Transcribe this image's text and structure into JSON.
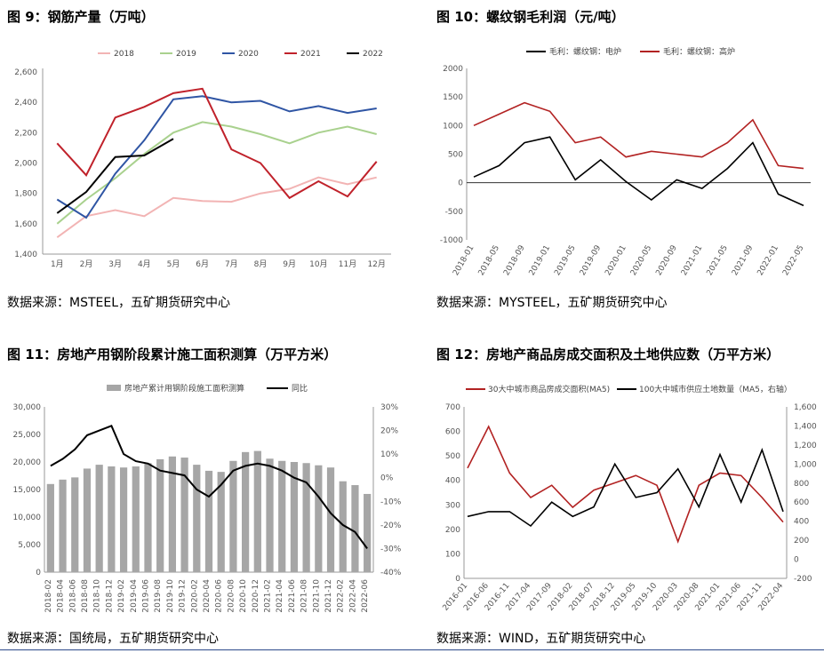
{
  "charts": [
    {
      "figure_title": "图 9：钢筋产量（万吨）",
      "source": "数据来源：MSTEEL，五矿期货研究中心",
      "chart_data": {
        "type": "line",
        "title": "图 9：钢筋产量（万吨）",
        "categories": [
          "1月",
          "2月",
          "3月",
          "4月",
          "5月",
          "6月",
          "7月",
          "8月",
          "9月",
          "10月",
          "11月",
          "12月"
        ],
        "yticks": [
          "1,400",
          "1,600",
          "1,800",
          "2,000",
          "2,200",
          "2,400",
          "2,600"
        ],
        "ylim": [
          1400,
          2600
        ],
        "legend_position": "top",
        "series": [
          {
            "name": "2018",
            "color": "#f2b4b4",
            "values": [
              1510,
              1650,
              1690,
              1650,
              1770,
              1750,
              1745,
              1800,
              1830,
              1905,
              1860,
              1905
            ]
          },
          {
            "name": "2019",
            "color": "#a9d18e",
            "values": [
              1600,
              1760,
              1900,
              2060,
              2200,
              2270,
              2240,
              2190,
              2130,
              2200,
              2240,
              2190
            ]
          },
          {
            "name": "2020",
            "color": "#2f55a4",
            "values": [
              1760,
              1640,
              1930,
              2150,
              2420,
              2440,
              2400,
              2410,
              2340,
              2375,
              2330,
              2360
            ]
          },
          {
            "name": "2021",
            "color": "#c0222b",
            "values": [
              2130,
              1920,
              2300,
              2370,
              2460,
              2490,
              2090,
              2000,
              1770,
              1880,
              1780,
              2010
            ]
          },
          {
            "name": "2022",
            "color": "#000000",
            "values": [
              1670,
              1810,
              2040,
              2050,
              2160,
              null,
              null,
              null,
              null,
              null,
              null,
              null
            ]
          }
        ]
      }
    },
    {
      "figure_title": "图 10：螺纹钢毛利润（元/吨）",
      "source": "数据来源：MYSTEEL，五矿期货研究中心",
      "chart_data": {
        "type": "line",
        "title": "图 10：螺纹钢毛利润（元/吨）",
        "x": [
          "2018-01",
          "2018-05",
          "2018-09",
          "2019-01",
          "2019-05",
          "2019-09",
          "2020-01",
          "2020-05",
          "2020-09",
          "2021-01",
          "2021-05",
          "2021-09",
          "2022-01",
          "2022-05"
        ],
        "yticks": [
          "-1000",
          "-500",
          "0",
          "500",
          "1000",
          "1500",
          "2000"
        ],
        "ylim": [
          -1000,
          2000
        ],
        "legend_position": "top",
        "series": [
          {
            "name": "毛利：螺纹钢：电炉",
            "color": "#000000",
            "values": [
              100,
              300,
              700,
              800,
              50,
              400,
              20,
              -300,
              50,
              -100,
              250,
              700,
              -200,
              -400
            ]
          },
          {
            "name": "毛利：螺纹钢：高炉",
            "color": "#b22222",
            "values": [
              1000,
              1200,
              1400,
              1250,
              700,
              800,
              450,
              550,
              500,
              450,
              700,
              1100,
              300,
              250
            ]
          }
        ]
      }
    },
    {
      "figure_title": "图 11：房地产用钢阶段累计施工面积测算（万平方米）",
      "source": "数据来源：国统局，五矿期货研究中心",
      "chart_data": {
        "type": "bar",
        "title": "图 11：房地产用钢阶段累计施工面积测算（万平方米）",
        "categories": [
          "2018-02",
          "2018-04",
          "2018-06",
          "2018-08",
          "2018-10",
          "2018-12",
          "2019-02",
          "2019-04",
          "2019-06",
          "2019-08",
          "2019-10",
          "2019-12",
          "2020-02",
          "2020-04",
          "2020-06",
          "2020-08",
          "2020-10",
          "2020-12",
          "2021-02",
          "2021-04",
          "2021-06",
          "2021-08",
          "2021-10",
          "2021-12",
          "2022-02",
          "2022-04",
          "2022-06"
        ],
        "yticks_left": [
          "0",
          "5,000",
          "10,000",
          "15,000",
          "20,000",
          "25,000",
          "30,000"
        ],
        "yticks_right": [
          "-40%",
          "-30%",
          "-20%",
          "-10%",
          "0%",
          "10%",
          "20%",
          "30%"
        ],
        "ylim_left": [
          0,
          30000
        ],
        "ylim_right": [
          -40,
          30
        ],
        "legend_position": "top",
        "series": [
          {
            "name": "房地产累计用钢阶段施工面积测算",
            "color": "#a6a6a6",
            "kind": "bar",
            "values": [
              16000,
              16800,
              17200,
              18800,
              19500,
              19200,
              19000,
              19200,
              19800,
              20500,
              21000,
              20800,
              19500,
              18400,
              18200,
              20200,
              21800,
              22000,
              20600,
              20200,
              20000,
              19800,
              19400,
              19000,
              16500,
              15800,
              14200
            ]
          },
          {
            "name": "同比",
            "color": "#000000",
            "kind": "line",
            "axis": "right",
            "values": [
              5,
              8,
              12,
              18,
              20,
              22,
              10,
              7,
              6,
              3,
              2,
              1,
              -5,
              -8,
              -3,
              3,
              5,
              6,
              5,
              3,
              0,
              -2,
              -8,
              -15,
              -20,
              -23,
              -30
            ]
          }
        ]
      }
    },
    {
      "figure_title": "图 12：房地产商品房成交面积及土地供应数（万平方米）",
      "source": "数据来源：WIND，五矿期货研究中心",
      "chart_data": {
        "type": "line",
        "title": "图 12：房地产商品房成交面积及土地供应数（万平方米）",
        "x": [
          "2016-01",
          "2016-06",
          "2016-11",
          "2017-04",
          "2017-09",
          "2018-02",
          "2018-07",
          "2018-12",
          "2019-05",
          "2019-10",
          "2020-03",
          "2020-08",
          "2021-01",
          "2021-06",
          "2021-11",
          "2022-04"
        ],
        "yticks_left": [
          "0",
          "100",
          "200",
          "300",
          "400",
          "500",
          "600",
          "700"
        ],
        "yticks_right": [
          "-200",
          "0",
          "200",
          "400",
          "600",
          "800",
          "1,000",
          "1,200",
          "1,400",
          "1,600"
        ],
        "ylim_left": [
          0,
          700
        ],
        "ylim_right": [
          -200,
          1600
        ],
        "legend_position": "top",
        "series": [
          {
            "name": "30大中城市商品房成交面积(MA5)",
            "color": "#b22222",
            "values": [
              450,
              620,
              430,
              330,
              380,
              290,
              360,
              390,
              420,
              380,
              150,
              380,
              430,
              420,
              330,
              230
            ]
          },
          {
            "name": "100大中城市供应土地数量（MA5，右轴）",
            "color": "#000000",
            "axis": "right",
            "values": [
              450,
              500,
              500,
              350,
              600,
              450,
              550,
              1000,
              650,
              700,
              950,
              550,
              1100,
              600,
              1150,
              500
            ]
          }
        ]
      }
    }
  ]
}
